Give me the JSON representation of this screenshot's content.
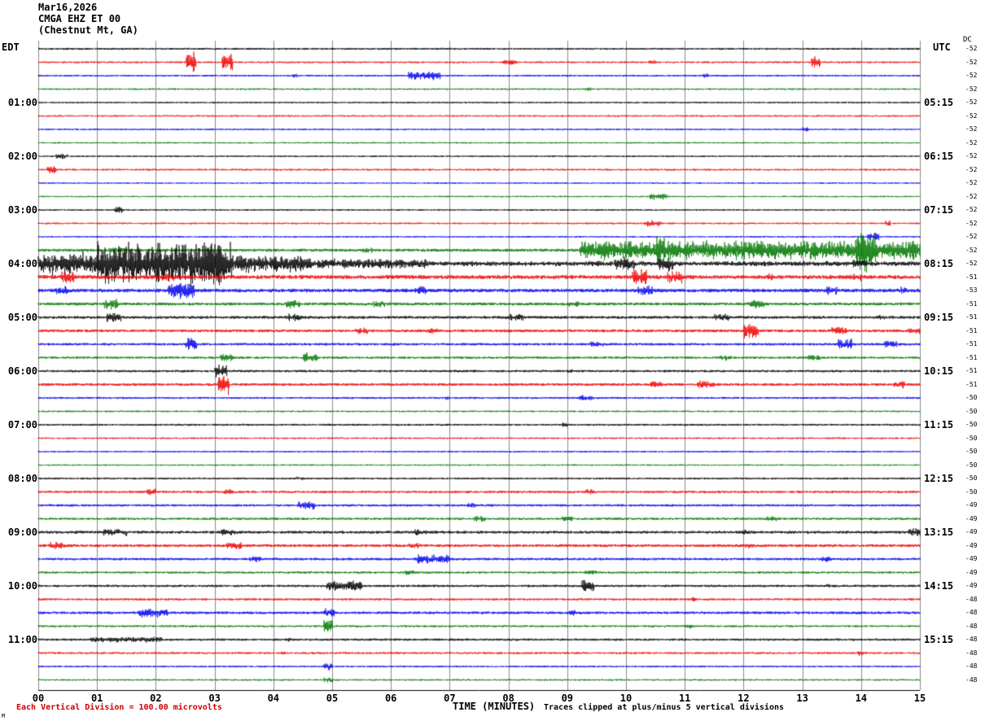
{
  "header": {
    "date": "Mar16,2026",
    "station": "CMGA EHZ ET 00",
    "location": "(Chestnut Mt, GA)",
    "left_tz": "EDT",
    "right_tz": "UTC",
    "dc_heading": "DC"
  },
  "footer": {
    "division_note": "Each Vertical Division =  100.00 microvolts",
    "xlabel": "TIME (MINUTES)",
    "clip_note": "Traces clipped at plus/minus 5 vertical divisions",
    "corner_mark": "M"
  },
  "chart_data": {
    "type": "line",
    "subtype": "helicorder-seismogram",
    "title": "CMGA EHZ ET 00 (Chestnut Mt, GA) Mar16,2026",
    "xlabel": "TIME (MINUTES)",
    "x_range": [
      0,
      15
    ],
    "minutes_per_row": 15,
    "x_ticks": [
      "00",
      "01",
      "02",
      "03",
      "04",
      "05",
      "06",
      "07",
      "08",
      "09",
      "10",
      "11",
      "12",
      "13",
      "14",
      "15"
    ],
    "trace_colors": [
      "#000000",
      "#ee0000",
      "#0000ee",
      "#007700"
    ],
    "grid_color": "#8a8a8a",
    "clip_divisions": 5,
    "microvolts_per_division": 100.0,
    "rows": [
      {
        "color": 0,
        "edt": "",
        "utc": "",
        "dc": "-52",
        "noise": 1.2,
        "events": []
      },
      {
        "color": 1,
        "edt": "",
        "utc": "",
        "dc": "-52",
        "noise": 1.1,
        "events": [
          [
            2.52,
            2.68,
            14
          ],
          [
            3.12,
            3.3,
            16
          ],
          [
            7.9,
            8.15,
            4
          ],
          [
            10.4,
            10.5,
            3
          ],
          [
            13.15,
            13.3,
            9
          ]
        ]
      },
      {
        "color": 2,
        "edt": "",
        "utc": "",
        "dc": "-52",
        "noise": 1.1,
        "events": [
          [
            4.3,
            4.4,
            3
          ],
          [
            6.3,
            6.85,
            6
          ],
          [
            11.3,
            11.4,
            3
          ]
        ]
      },
      {
        "color": 3,
        "edt": "",
        "utc": "",
        "dc": "-52",
        "noise": 1.0,
        "events": [
          [
            9.3,
            9.4,
            3
          ]
        ]
      },
      {
        "color": 0,
        "edt": "01:00",
        "utc": "05:15",
        "dc": "-52",
        "noise": 1.0,
        "events": []
      },
      {
        "color": 1,
        "edt": "",
        "utc": "",
        "dc": "-52",
        "noise": 1.0,
        "events": []
      },
      {
        "color": 2,
        "edt": "",
        "utc": "",
        "dc": "-52",
        "noise": 1.0,
        "events": [
          [
            13.0,
            13.1,
            3
          ]
        ]
      },
      {
        "color": 3,
        "edt": "",
        "utc": "",
        "dc": "-52",
        "noise": 0.9,
        "events": []
      },
      {
        "color": 0,
        "edt": "02:00",
        "utc": "06:15",
        "dc": "-52",
        "noise": 1.0,
        "events": [
          [
            0.3,
            0.5,
            4
          ]
        ]
      },
      {
        "color": 1,
        "edt": "",
        "utc": "",
        "dc": "-52",
        "noise": 1.1,
        "events": [
          [
            0.15,
            0.3,
            5
          ]
        ]
      },
      {
        "color": 2,
        "edt": "",
        "utc": "",
        "dc": "-52",
        "noise": 0.9,
        "events": []
      },
      {
        "color": 3,
        "edt": "",
        "utc": "",
        "dc": "-52",
        "noise": 0.9,
        "events": [
          [
            10.4,
            10.7,
            5
          ]
        ]
      },
      {
        "color": 0,
        "edt": "03:00",
        "utc": "07:15",
        "dc": "-52",
        "noise": 1.0,
        "events": [
          [
            1.3,
            1.45,
            6
          ]
        ]
      },
      {
        "color": 1,
        "edt": "",
        "utc": "",
        "dc": "-52",
        "noise": 1.0,
        "events": [
          [
            10.3,
            10.6,
            4
          ],
          [
            14.4,
            14.5,
            4
          ]
        ]
      },
      {
        "color": 2,
        "edt": "",
        "utc": "",
        "dc": "-52",
        "noise": 1.0,
        "events": [
          [
            14.1,
            14.3,
            6
          ]
        ]
      },
      {
        "color": 3,
        "edt": "",
        "utc": "",
        "dc": "-52",
        "noise": 1.8,
        "events": [
          [
            1.2,
            1.5,
            5
          ],
          [
            5.5,
            5.7,
            4
          ],
          [
            9.2,
            15,
            13
          ],
          [
            10.5,
            10.8,
            20
          ],
          [
            13.9,
            14.25,
            30
          ]
        ]
      },
      {
        "color": 0,
        "edt": "04:00",
        "utc": "08:15",
        "dc": "-52",
        "noise": 2.2,
        "events": [
          [
            0,
            1,
            16
          ],
          [
            1,
            3.3,
            30
          ],
          [
            3.3,
            4.6,
            12
          ],
          [
            4.6,
            6.6,
            7
          ],
          [
            6.6,
            15,
            3.5
          ],
          [
            9.8,
            10.15,
            9
          ],
          [
            10.55,
            10.8,
            11
          ],
          [
            13.85,
            14.1,
            6
          ]
        ]
      },
      {
        "color": 1,
        "edt": "",
        "utc": "",
        "dc": "-51",
        "noise": 2.4,
        "events": [
          [
            0.4,
            0.6,
            8
          ],
          [
            2.1,
            2.3,
            5
          ],
          [
            10.1,
            10.35,
            12
          ],
          [
            10.7,
            10.95,
            10
          ],
          [
            12.4,
            12.5,
            5
          ],
          [
            13.8,
            14,
            6
          ]
        ]
      },
      {
        "color": 2,
        "edt": "",
        "utc": "",
        "dc": "-53",
        "noise": 2.2,
        "events": [
          [
            0.3,
            0.5,
            6
          ],
          [
            2.2,
            2.65,
            12
          ],
          [
            6.4,
            6.6,
            6
          ],
          [
            10.2,
            10.45,
            8
          ],
          [
            13.4,
            13.6,
            6
          ],
          [
            14.6,
            14.8,
            5
          ]
        ]
      },
      {
        "color": 3,
        "edt": "",
        "utc": "",
        "dc": "-51",
        "noise": 1.8,
        "events": [
          [
            1.1,
            1.35,
            8
          ],
          [
            4.2,
            4.45,
            6
          ],
          [
            5.7,
            5.9,
            5
          ],
          [
            9.0,
            9.2,
            4
          ],
          [
            12.1,
            12.35,
            6
          ]
        ]
      },
      {
        "color": 0,
        "edt": "05:00",
        "utc": "09:15",
        "dc": "-51",
        "noise": 1.7,
        "events": [
          [
            1.15,
            1.4,
            7
          ],
          [
            4.25,
            4.5,
            5
          ],
          [
            8.0,
            8.25,
            5
          ],
          [
            11.5,
            11.75,
            5
          ],
          [
            14.2,
            14.4,
            4
          ]
        ]
      },
      {
        "color": 1,
        "edt": "",
        "utc": "",
        "dc": "-51",
        "noise": 1.7,
        "events": [
          [
            5.4,
            5.6,
            5
          ],
          [
            6.6,
            6.8,
            4
          ],
          [
            12.0,
            12.25,
            10
          ],
          [
            13.5,
            13.75,
            6
          ],
          [
            14.8,
            15,
            4
          ]
        ]
      },
      {
        "color": 2,
        "edt": "",
        "utc": "",
        "dc": "-51",
        "noise": 1.5,
        "events": [
          [
            2.5,
            2.7,
            9
          ],
          [
            9.4,
            9.6,
            4
          ],
          [
            13.6,
            13.85,
            7
          ],
          [
            14.4,
            14.6,
            5
          ]
        ]
      },
      {
        "color": 3,
        "edt": "",
        "utc": "",
        "dc": "-51",
        "noise": 1.4,
        "events": [
          [
            3.1,
            3.3,
            6
          ],
          [
            4.5,
            4.75,
            8
          ],
          [
            11.6,
            11.8,
            4
          ],
          [
            13.1,
            13.3,
            4
          ]
        ]
      },
      {
        "color": 0,
        "edt": "06:00",
        "utc": "10:15",
        "dc": "-51",
        "noise": 1.4,
        "events": [
          [
            3.0,
            3.2,
            10
          ],
          [
            9.0,
            9.1,
            3
          ]
        ]
      },
      {
        "color": 1,
        "edt": "",
        "utc": "",
        "dc": "-51",
        "noise": 1.6,
        "events": [
          [
            3.05,
            3.25,
            14
          ],
          [
            10.4,
            10.6,
            5
          ],
          [
            11.2,
            11.5,
            5
          ],
          [
            14.55,
            14.75,
            5
          ]
        ]
      },
      {
        "color": 2,
        "edt": "",
        "utc": "",
        "dc": "-50",
        "noise": 1.2,
        "events": [
          [
            6.9,
            7.0,
            3
          ],
          [
            9.2,
            9.45,
            4
          ]
        ]
      },
      {
        "color": 3,
        "edt": "",
        "utc": "",
        "dc": "-50",
        "noise": 1.0,
        "events": []
      },
      {
        "color": 0,
        "edt": "07:00",
        "utc": "11:15",
        "dc": "-50",
        "noise": 1.2,
        "events": [
          [
            8.9,
            9.0,
            3
          ]
        ]
      },
      {
        "color": 1,
        "edt": "",
        "utc": "",
        "dc": "-50",
        "noise": 1.0,
        "events": []
      },
      {
        "color": 2,
        "edt": "",
        "utc": "",
        "dc": "-50",
        "noise": 1.0,
        "events": []
      },
      {
        "color": 3,
        "edt": "",
        "utc": "",
        "dc": "-50",
        "noise": 0.9,
        "events": []
      },
      {
        "color": 0,
        "edt": "08:00",
        "utc": "12:15",
        "dc": "-50",
        "noise": 1.2,
        "events": [
          [
            4.4,
            4.5,
            3
          ]
        ]
      },
      {
        "color": 1,
        "edt": "",
        "utc": "",
        "dc": "-50",
        "noise": 1.4,
        "events": [
          [
            1.85,
            2.0,
            5
          ],
          [
            3.15,
            3.3,
            4
          ],
          [
            9.3,
            9.45,
            4
          ]
        ]
      },
      {
        "color": 2,
        "edt": "",
        "utc": "",
        "dc": "-49",
        "noise": 1.4,
        "events": [
          [
            4.4,
            4.7,
            6
          ],
          [
            7.3,
            7.45,
            4
          ]
        ]
      },
      {
        "color": 3,
        "edt": "",
        "utc": "",
        "dc": "-49",
        "noise": 1.4,
        "events": [
          [
            7.4,
            7.6,
            4
          ],
          [
            8.9,
            9.1,
            4
          ],
          [
            12.4,
            12.55,
            4
          ]
        ]
      },
      {
        "color": 0,
        "edt": "09:00",
        "utc": "13:15",
        "dc": "-49",
        "noise": 1.7,
        "events": [
          [
            1.1,
            1.5,
            5
          ],
          [
            3.1,
            3.35,
            5
          ],
          [
            6.4,
            6.6,
            4
          ],
          [
            11.9,
            12.1,
            4
          ],
          [
            14.8,
            15,
            6
          ]
        ]
      },
      {
        "color": 1,
        "edt": "",
        "utc": "",
        "dc": "-49",
        "noise": 1.7,
        "events": [
          [
            0.2,
            0.45,
            6
          ],
          [
            3.2,
            3.45,
            5
          ],
          [
            6.3,
            6.5,
            4
          ],
          [
            12.0,
            12.2,
            4
          ]
        ]
      },
      {
        "color": 2,
        "edt": "",
        "utc": "",
        "dc": "-49",
        "noise": 1.5,
        "events": [
          [
            3.6,
            3.8,
            5
          ],
          [
            6.4,
            7.0,
            6
          ],
          [
            13.3,
            13.5,
            4
          ]
        ]
      },
      {
        "color": 3,
        "edt": "",
        "utc": "",
        "dc": "-49",
        "noise": 1.3,
        "events": [
          [
            6.2,
            6.4,
            4
          ],
          [
            9.3,
            9.5,
            3
          ]
        ]
      },
      {
        "color": 0,
        "edt": "10:00",
        "utc": "14:15",
        "dc": "-49",
        "noise": 1.4,
        "events": [
          [
            4.9,
            5.5,
            7
          ],
          [
            9.25,
            9.45,
            9
          ],
          [
            13.4,
            13.5,
            3
          ]
        ]
      },
      {
        "color": 1,
        "edt": "",
        "utc": "",
        "dc": "-48",
        "noise": 1.3,
        "events": [
          [
            11.1,
            11.2,
            3
          ]
        ]
      },
      {
        "color": 2,
        "edt": "",
        "utc": "",
        "dc": "-48",
        "noise": 1.6,
        "events": [
          [
            1.7,
            2.2,
            7
          ],
          [
            4.85,
            5.05,
            6
          ],
          [
            9.0,
            9.15,
            4
          ]
        ]
      },
      {
        "color": 3,
        "edt": "",
        "utc": "",
        "dc": "-48",
        "noise": 1.2,
        "events": [
          [
            4.85,
            5.0,
            10
          ],
          [
            11.0,
            11.15,
            3
          ]
        ]
      },
      {
        "color": 0,
        "edt": "11:00",
        "utc": "15:15",
        "dc": "-48",
        "noise": 1.4,
        "events": [
          [
            0.9,
            2.1,
            4
          ],
          [
            4.2,
            4.35,
            3
          ]
        ]
      },
      {
        "color": 1,
        "edt": "",
        "utc": "",
        "dc": "-48",
        "noise": 1.2,
        "events": [
          [
            4.1,
            4.2,
            3
          ],
          [
            13.9,
            14.05,
            4
          ]
        ]
      },
      {
        "color": 2,
        "edt": "",
        "utc": "",
        "dc": "-48",
        "noise": 1.1,
        "events": [
          [
            4.85,
            5.0,
            6
          ]
        ]
      },
      {
        "color": 3,
        "edt": "",
        "utc": "",
        "dc": "-48",
        "noise": 1.0,
        "events": [
          [
            4.85,
            5.0,
            5
          ]
        ]
      }
    ]
  }
}
